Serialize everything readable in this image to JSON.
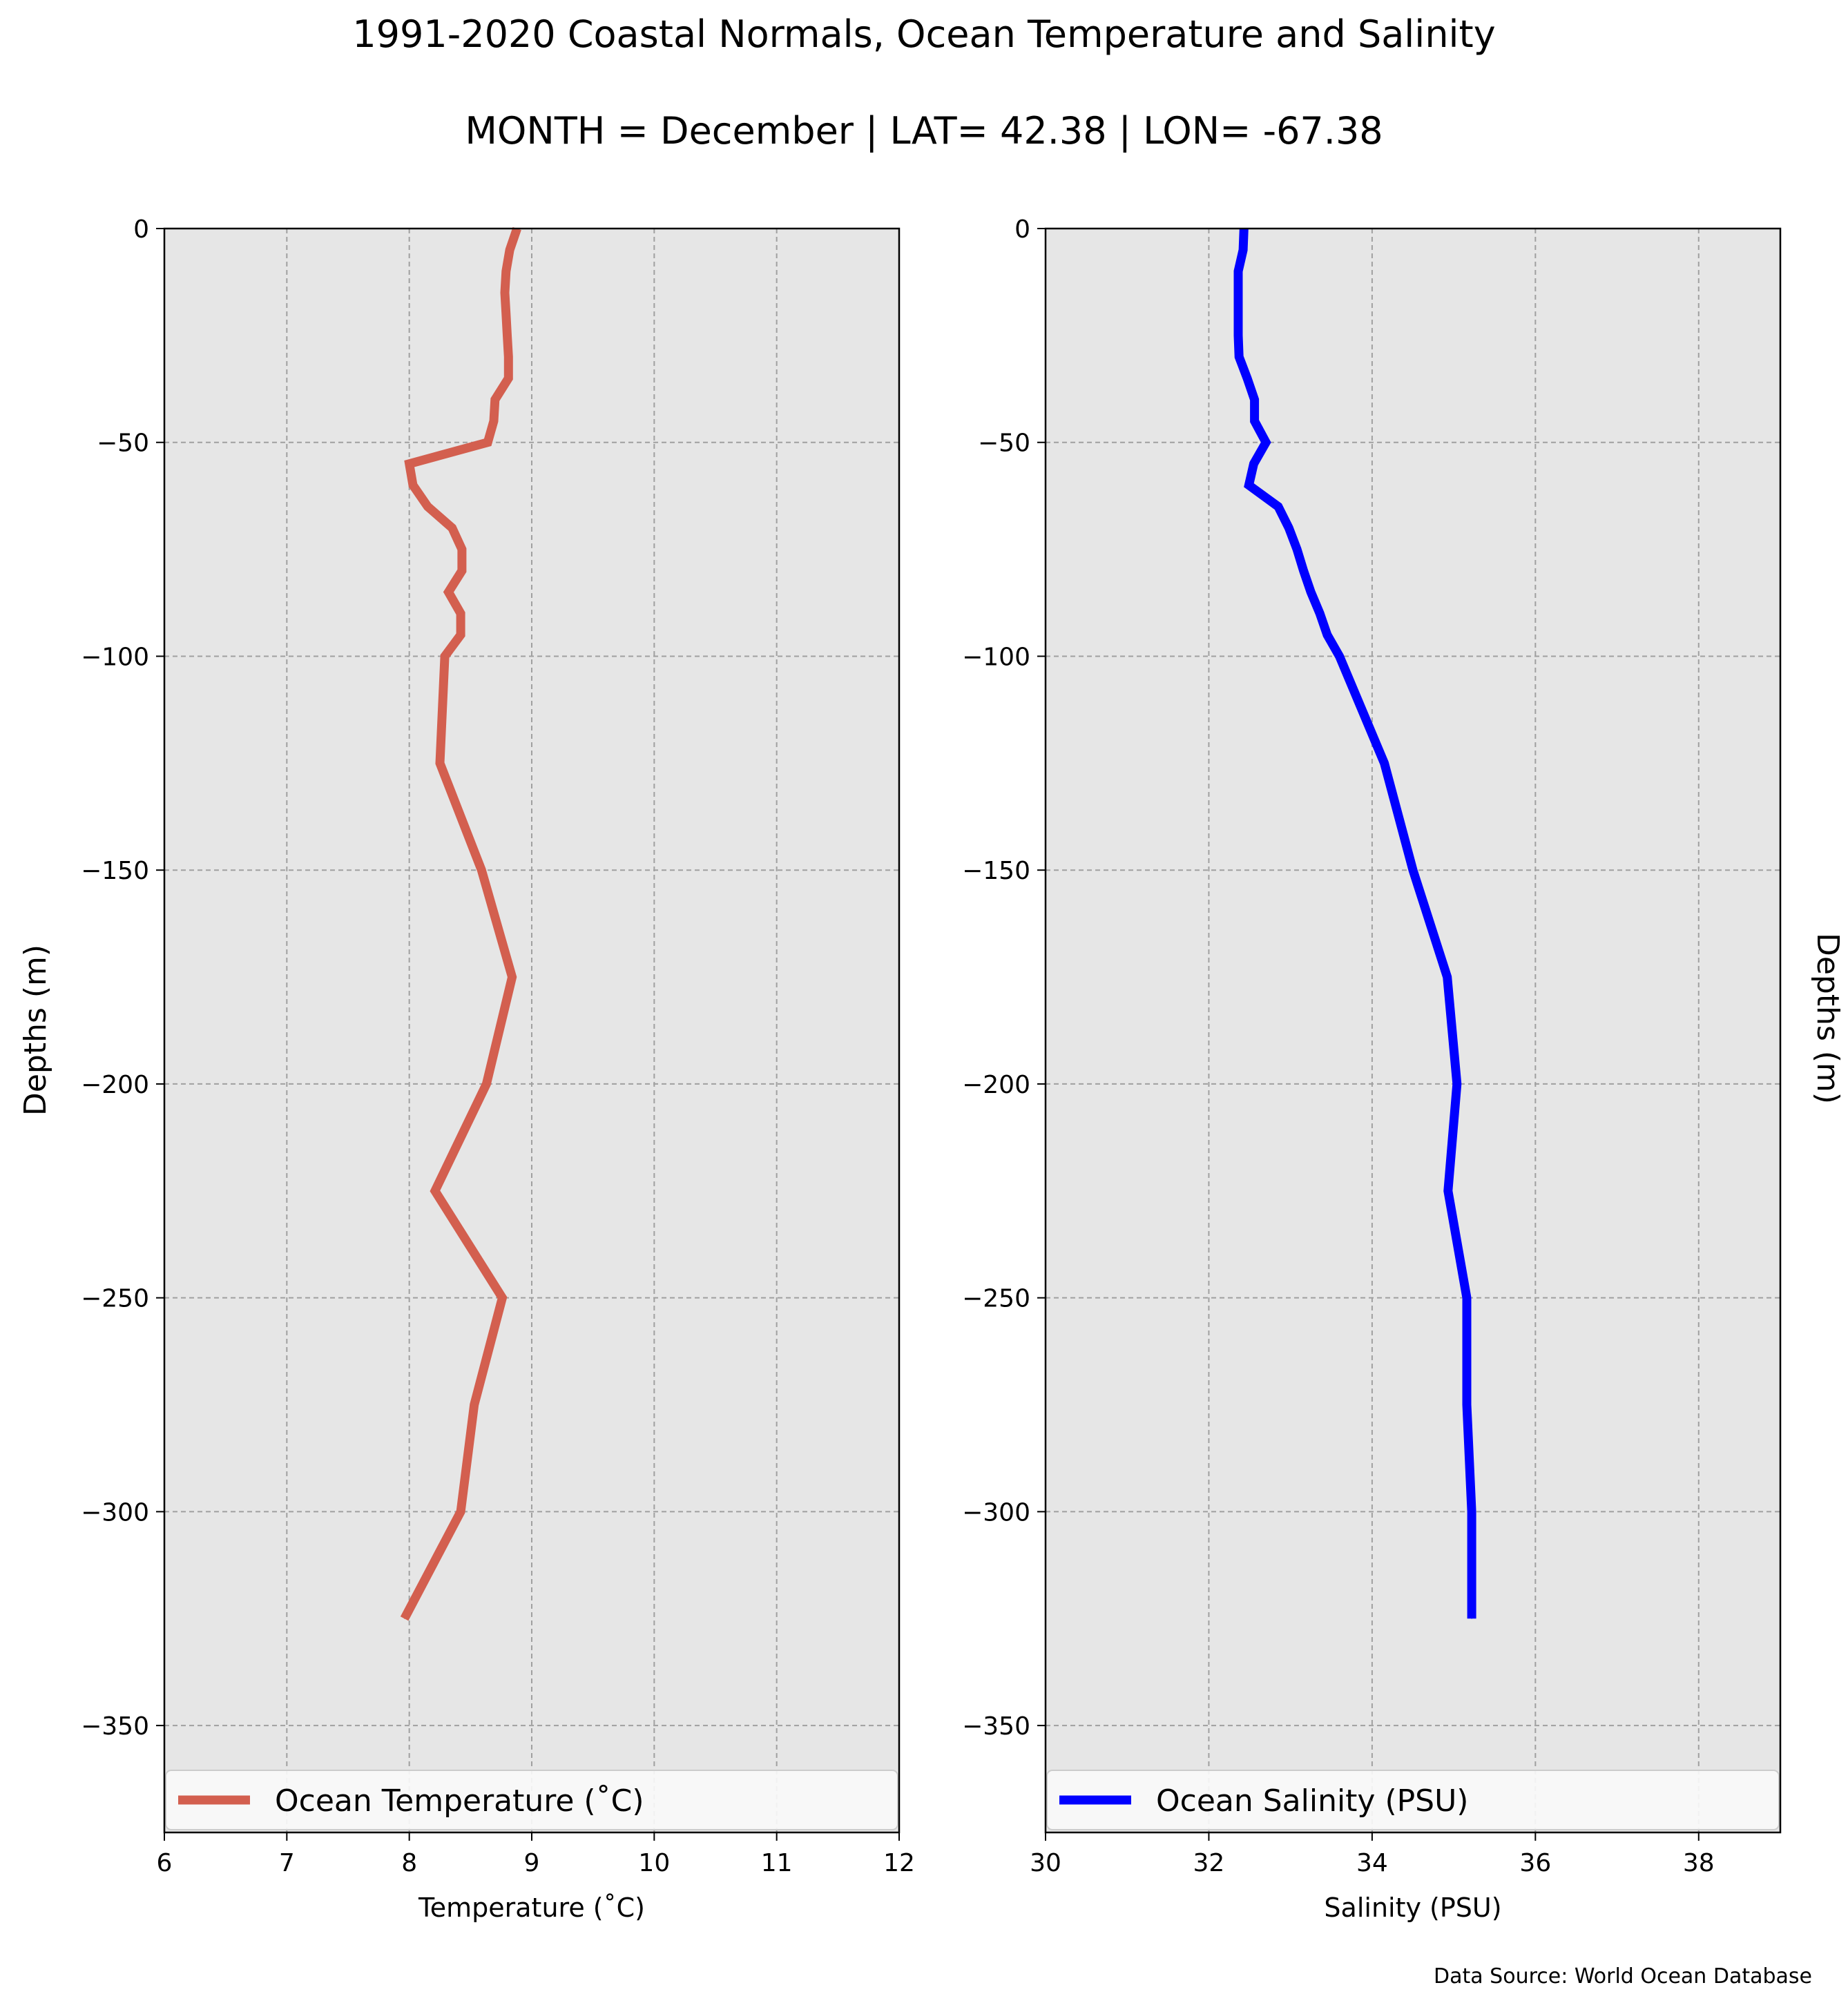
{
  "title": "1991-2020 Coastal Normals, Ocean Temperature and Salinity",
  "subtitle": "MONTH = December | LAT= 42.38 | LON= -67.38",
  "source": "Data Source: World Ocean Database",
  "chart_data": [
    {
      "type": "line",
      "xlabel": "Temperature (˚C)",
      "ylabel": "Depths (m)",
      "xlim": [
        6,
        12
      ],
      "ylim": [
        -375,
        0
      ],
      "xticks": [
        "6",
        "7",
        "8",
        "9",
        "10",
        "11",
        "12"
      ],
      "yticks": [
        "0",
        "−50",
        "−100",
        "−150",
        "−200",
        "−250",
        "−300",
        "−350"
      ],
      "grid": true,
      "background": "#e6e6e6",
      "legend_position": "lower center",
      "series": [
        {
          "name": "Ocean Temperature (˚C)",
          "color": "#d35f4f",
          "x": [
            8.88,
            8.82,
            8.79,
            8.78,
            8.79,
            8.8,
            8.81,
            8.81,
            8.7,
            8.69,
            8.64,
            8.0,
            8.03,
            8.15,
            8.35,
            8.43,
            8.43,
            8.32,
            8.42,
            8.42,
            8.29,
            8.25,
            8.59,
            8.84,
            8.63,
            8.21,
            8.76,
            8.53,
            8.42,
            7.96
          ],
          "y": [
            0,
            -5,
            -10,
            -15,
            -20,
            -25,
            -30,
            -35,
            -40,
            -45,
            -50,
            -55,
            -60,
            -65,
            -70,
            -75,
            -80,
            -85,
            -90,
            -95,
            -100,
            -125,
            -150,
            -175,
            -200,
            -225,
            -250,
            -275,
            -300,
            -325
          ]
        }
      ]
    },
    {
      "type": "line",
      "xlabel": "Salinity (PSU)",
      "ylabel": "Depths (m)",
      "xlim": [
        30,
        39
      ],
      "ylim": [
        -375,
        0
      ],
      "xticks": [
        "30",
        "32",
        "34",
        "36",
        "38"
      ],
      "yticks": [
        "0",
        "−50",
        "−100",
        "−150",
        "−200",
        "−250",
        "−300",
        "−350"
      ],
      "grid": true,
      "background": "#e6e6e6",
      "legend_position": "lower center",
      "series": [
        {
          "name": "Ocean Salinity (PSU)",
          "color": "#0000ff",
          "x": [
            32.43,
            32.42,
            32.36,
            32.36,
            32.36,
            32.36,
            32.37,
            32.47,
            32.56,
            32.56,
            32.7,
            32.55,
            32.49,
            32.85,
            32.98,
            33.08,
            33.16,
            33.25,
            33.36,
            33.45,
            33.6,
            34.15,
            34.5,
            34.92,
            35.04,
            34.93,
            35.16,
            35.16,
            35.22,
            35.22
          ],
          "y": [
            0,
            -5,
            -10,
            -15,
            -20,
            -25,
            -30,
            -35,
            -40,
            -45,
            -50,
            -55,
            -60,
            -65,
            -70,
            -75,
            -80,
            -85,
            -90,
            -95,
            -100,
            -125,
            -150,
            -175,
            -200,
            -225,
            -250,
            -275,
            -300,
            -325
          ]
        }
      ]
    }
  ]
}
